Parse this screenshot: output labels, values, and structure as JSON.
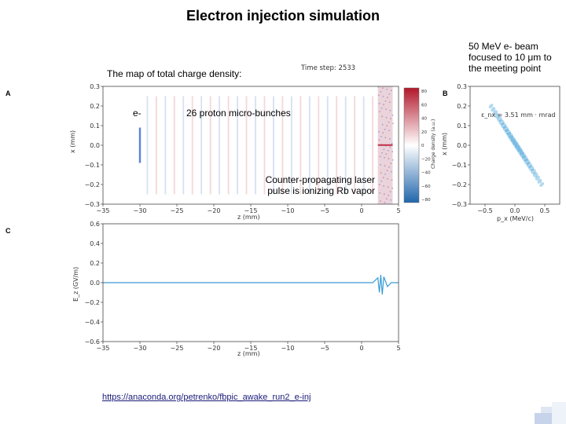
{
  "slide": {
    "title": "Electron injection simulation",
    "beam_note": "50 MeV e- beam focused to 10 μm to the meeting point",
    "map_caption": "The map of total charge density:",
    "time_step": "Time step: 2533",
    "electron_label": "e-",
    "bunches_label": "26 proton micro-bunches",
    "laser_note": "Counter-propagating laser pulse is ionizing Rb vapor",
    "link": "https://anaconda.org/petrenko/fbpic_awake_run2_e-inj"
  },
  "panels": {
    "a": "A",
    "b": "B",
    "c": "C"
  },
  "chart_data": [
    {
      "type": "heatmap",
      "title": "Time step: 2533",
      "xlabel": "z (mm)",
      "ylabel": "x (mm)",
      "xlim": [
        -35,
        5
      ],
      "ylim": [
        -0.3,
        0.3
      ],
      "x_ticks": [
        "−35",
        "−30",
        "−25",
        "−20",
        "−15",
        "−10",
        "−5",
        "0",
        "5"
      ],
      "y_ticks": [
        "0.3",
        "0.2",
        "0.1",
        "0.0",
        "−0.1",
        "−0.2",
        "−0.3"
      ],
      "colorbar": {
        "label": "Charge density (a.u.)",
        "ticks": [
          "80",
          "60",
          "40",
          "20",
          "0",
          "−20",
          "−40",
          "−60",
          "−80"
        ],
        "colors": [
          "#b2182b",
          "#ffffff",
          "#2166ac"
        ]
      },
      "electron_bunch_z": -30,
      "proton_bunch_count": 26,
      "proton_bunch_z_range": [
        -29,
        1.5
      ],
      "laser_region_z": [
        2.2,
        4.2
      ]
    },
    {
      "type": "scatter",
      "annotation": "ε_nx = 3.51 mm · mrad",
      "xlabel": "p_x (MeV/c)",
      "ylabel": "x (mm)",
      "xlim": [
        -0.75,
        0.75
      ],
      "ylim": [
        -0.3,
        0.3
      ],
      "x_ticks": [
        "−0.5",
        "0.0",
        "0.5"
      ],
      "y_ticks": [
        "0.3",
        "0.2",
        "0.1",
        "0.0",
        "−0.1",
        "−0.2",
        "−0.3"
      ],
      "cloud": {
        "center": [
          0.0,
          0.0
        ],
        "start": [
          -0.4,
          0.2
        ],
        "end": [
          0.45,
          -0.2
        ]
      },
      "color": "#1f8fd0"
    },
    {
      "type": "line",
      "xlabel": "z (mm)",
      "ylabel": "E_z (GV/m)",
      "xlim": [
        -35,
        5
      ],
      "ylim": [
        -0.6,
        0.6
      ],
      "x_ticks": [
        "−35",
        "−30",
        "−25",
        "−20",
        "−15",
        "−10",
        "−5",
        "0",
        "5"
      ],
      "y_ticks": [
        "0.6",
        "0.4",
        "0.2",
        "0.0",
        "−0.2",
        "−0.4",
        "−0.6"
      ],
      "x": [
        -35,
        -10,
        0,
        1.5,
        2.2,
        2.4,
        2.6,
        2.8,
        3.0,
        3.5,
        4.0,
        5.0
      ],
      "y": [
        0,
        0,
        0,
        0,
        0.005,
        -0.01,
        0.008,
        -0.012,
        0.006,
        -0.004,
        0,
        0
      ],
      "color": "#3a9bd5"
    }
  ]
}
